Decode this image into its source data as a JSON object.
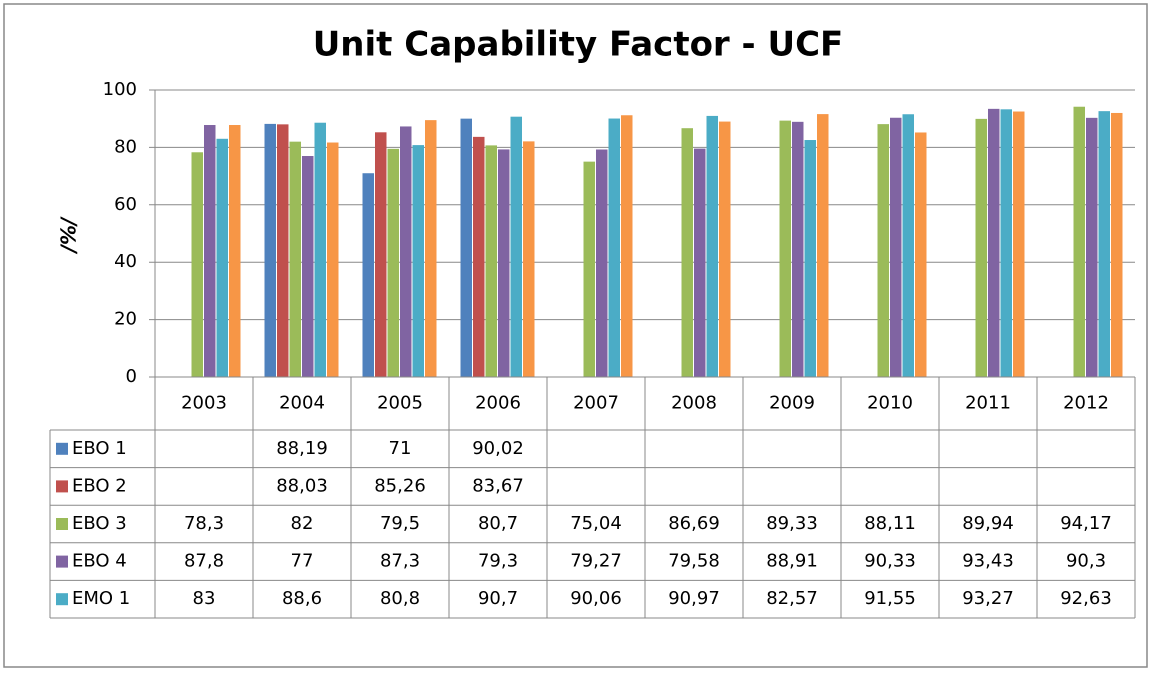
{
  "chart_data": {
    "type": "bar",
    "title": "Unit Capability Factor - UCF",
    "y_label": "/%/",
    "categories": [
      "2003",
      "2004",
      "2005",
      "2006",
      "2007",
      "2008",
      "2009",
      "2010",
      "2011",
      "2012"
    ],
    "ylim": [
      0,
      100
    ],
    "yticks": [
      0,
      20,
      40,
      60,
      80,
      100
    ],
    "grid": true,
    "series": [
      {
        "name": "EBO 1",
        "color": "#4f81bd",
        "values": [
          null,
          88.19,
          71,
          90.02,
          null,
          null,
          null,
          null,
          null,
          null
        ],
        "value_labels": [
          null,
          "88,19",
          "71",
          "90,02",
          null,
          null,
          null,
          null,
          null,
          null
        ]
      },
      {
        "name": "EBO 2",
        "color": "#c0504d",
        "values": [
          null,
          88.03,
          85.26,
          83.67,
          null,
          null,
          null,
          null,
          null,
          null
        ],
        "value_labels": [
          null,
          "88,03",
          "85,26",
          "83,67",
          null,
          null,
          null,
          null,
          null,
          null
        ]
      },
      {
        "name": "EBO 3",
        "color": "#9bbb59",
        "values": [
          78.3,
          82,
          79.5,
          80.7,
          75.04,
          86.69,
          89.33,
          88.11,
          89.94,
          94.17
        ],
        "value_labels": [
          "78,3",
          "82",
          "79,5",
          "80,7",
          "75,04",
          "86,69",
          "89,33",
          "88,11",
          "89,94",
          "94,17"
        ]
      },
      {
        "name": "EBO 4",
        "color": "#8064a2",
        "values": [
          87.8,
          77,
          87.3,
          79.3,
          79.27,
          79.58,
          88.91,
          90.33,
          93.43,
          90.3
        ],
        "value_labels": [
          "87,8",
          "77",
          "87,3",
          "79,3",
          "79,27",
          "79,58",
          "88,91",
          "90,33",
          "93,43",
          "90,3"
        ]
      },
      {
        "name": "EMO 1",
        "color": "#4bacc6",
        "values": [
          83,
          88.6,
          80.8,
          90.7,
          90.06,
          90.97,
          82.57,
          91.55,
          93.27,
          92.63
        ],
        "value_labels": [
          "83",
          "88,6",
          "80,8",
          "90,7",
          "90,06",
          "90,97",
          "82,57",
          "91,55",
          "93,27",
          "92,63"
        ]
      },
      {
        "color": "#f79646",
        "values": [
          87.8,
          81.7,
          89.5,
          82.1,
          91.2,
          89,
          91.6,
          85.2,
          92.5,
          92
        ]
      }
    ]
  }
}
